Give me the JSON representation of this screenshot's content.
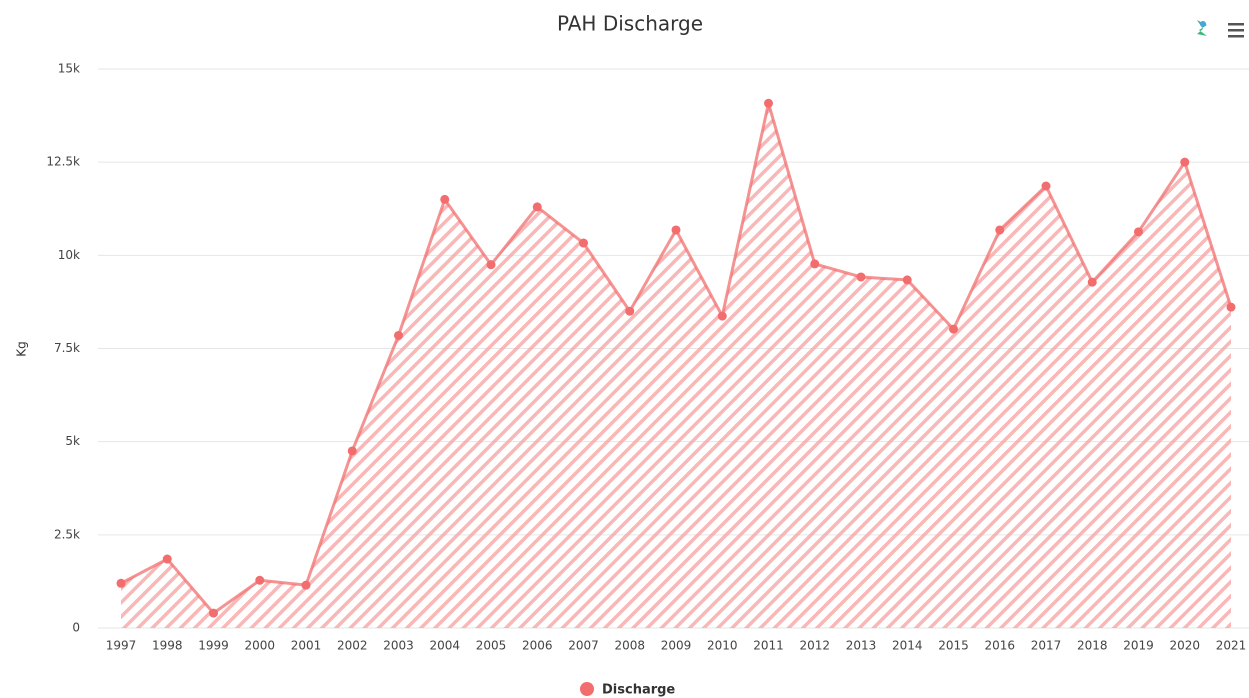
{
  "chart_data": {
    "type": "area",
    "title": "PAH Discharge",
    "y_label": "Kg",
    "categories": [
      "1997",
      "1998",
      "1999",
      "2000",
      "2001",
      "2002",
      "2003",
      "2004",
      "2005",
      "2006",
      "2007",
      "2008",
      "2009",
      "2010",
      "2011",
      "2012",
      "2013",
      "2014",
      "2015",
      "2016",
      "2017",
      "2018",
      "2019",
      "2020",
      "2021"
    ],
    "series": [
      {
        "name": "Discharge",
        "color": "#f26d6d",
        "values": [
          1200,
          1850,
          400,
          1280,
          1150,
          4750,
          7850,
          11500,
          9750,
          11300,
          10330,
          8500,
          10680,
          8370,
          14080,
          9770,
          9420,
          9340,
          8020,
          10680,
          11860,
          9280,
          10630,
          12500,
          8610
        ]
      }
    ],
    "ylim": [
      0,
      15000
    ],
    "yticks": [
      0,
      {
        "value": 2500,
        "label": "2.5k"
      },
      {
        "value": 5000,
        "label": "5k"
      },
      {
        "value": 7500,
        "label": "7.5k"
      },
      {
        "value": 10000,
        "label": "10k"
      },
      {
        "value": 12500,
        "label": "12.5k"
      },
      {
        "value": 15000,
        "label": "15k"
      }
    ],
    "grid": true,
    "legend": "bottom"
  }
}
